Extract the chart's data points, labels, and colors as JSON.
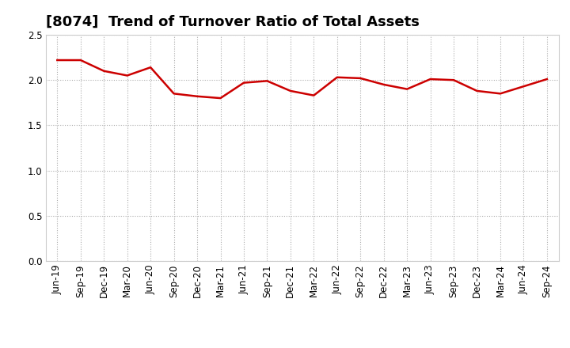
{
  "title": "[8074]  Trend of Turnover Ratio of Total Assets",
  "x_labels": [
    "Jun-19",
    "Sep-19",
    "Dec-19",
    "Mar-20",
    "Jun-20",
    "Sep-20",
    "Dec-20",
    "Mar-21",
    "Jun-21",
    "Sep-21",
    "Dec-21",
    "Mar-22",
    "Jun-22",
    "Sep-22",
    "Dec-22",
    "Mar-23",
    "Jun-23",
    "Sep-23",
    "Dec-23",
    "Mar-24",
    "Jun-24",
    "Sep-24"
  ],
  "y_values": [
    2.22,
    2.22,
    2.1,
    2.05,
    2.14,
    1.85,
    1.82,
    1.8,
    1.97,
    1.99,
    1.88,
    1.83,
    2.03,
    2.02,
    1.95,
    1.9,
    2.01,
    2.0,
    1.88,
    1.85,
    1.93,
    2.01
  ],
  "line_color": "#cc0000",
  "line_width": 1.8,
  "ylim": [
    0.0,
    2.5
  ],
  "yticks": [
    0.0,
    0.5,
    1.0,
    1.5,
    2.0,
    2.5
  ],
  "grid_color": "#aaaaaa",
  "grid_style": "dotted",
  "background_color": "#ffffff",
  "title_fontsize": 13,
  "tick_fontsize": 8.5
}
